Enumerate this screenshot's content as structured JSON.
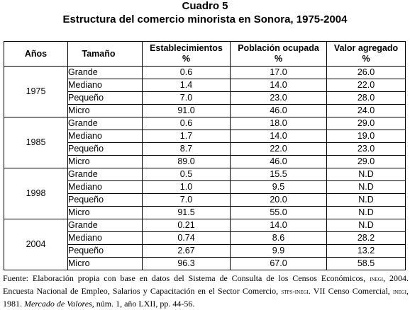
{
  "title": "Cuadro 5",
  "subtitle": "Estructura del comercio minorista en Sonora, 1975-2004",
  "headers": {
    "anios": "Años",
    "tamano": "Tamaño",
    "establecimientos": "Establecimientos",
    "poblacion": "Población ocupada",
    "valor": "Valor agregado",
    "unit": "%"
  },
  "groups": [
    {
      "year": "1975",
      "rows": [
        {
          "size": "Grande",
          "est": "0.6",
          "pob": "17.0",
          "val": "26.0"
        },
        {
          "size": "Mediano",
          "est": "1.4",
          "pob": "14.0",
          "val": "22.0"
        },
        {
          "size": "Pequeño",
          "est": "7.0",
          "pob": "23.0",
          "val": "28.0"
        },
        {
          "size": "Micro",
          "est": "91.0",
          "pob": "46.0",
          "val": "24.0"
        }
      ]
    },
    {
      "year": "1985",
      "rows": [
        {
          "size": "Grande",
          "est": "0.6",
          "pob": "18.0",
          "val": "29.0"
        },
        {
          "size": "Mediano",
          "est": "1.7",
          "pob": "14.0",
          "val": "19.0"
        },
        {
          "size": "Pequeño",
          "est": "8.7",
          "pob": "22.0",
          "val": "23.0"
        },
        {
          "size": "Micro",
          "est": "89.0",
          "pob": "46.0",
          "val": "29.0"
        }
      ]
    },
    {
      "year": "1998",
      "rows": [
        {
          "size": "Grande",
          "est": "0.5",
          "pob": "15.5",
          "val": "N.D"
        },
        {
          "size": "Mediano",
          "est": "1.0",
          "pob": "9.5",
          "val": "N.D"
        },
        {
          "size": "Pequeño",
          "est": "7.0",
          "pob": "20.0",
          "val": "N.D"
        },
        {
          "size": "Micro",
          "est": "91.5",
          "pob": "55.0",
          "val": "N.D"
        }
      ]
    },
    {
      "year": "2004",
      "rows": [
        {
          "size": "Grande",
          "est": "0.21",
          "pob": "14.0",
          "val": "N.D"
        },
        {
          "size": "Mediano",
          "est": "0.74",
          "pob": "8.6",
          "val": "28.2"
        },
        {
          "size": "Pequeño",
          "est": "2.67",
          "pob": "9.9",
          "val": "13.2"
        },
        {
          "size": "Micro",
          "est": "96.3",
          "pob": "67.0",
          "val": "58.5"
        }
      ]
    }
  ],
  "footnote": {
    "p1": "Fuente: Elaboración propia con base en datos del Sistema de Consulta de los Censos Económicos, ",
    "inegi1": "inegi",
    "p2": ", 2004. Encuesta Nacional de Empleo, Salarios y Capacitación en el Sector Comercio, ",
    "stps": "stps-inegi",
    "p3": ". VII Censo Comercial, ",
    "inegi2": "inegi",
    "p4": ", 1981. ",
    "journal": "Mercado de Valores,",
    "p5": " núm. 1, año LXII, pp. 44-56."
  }
}
